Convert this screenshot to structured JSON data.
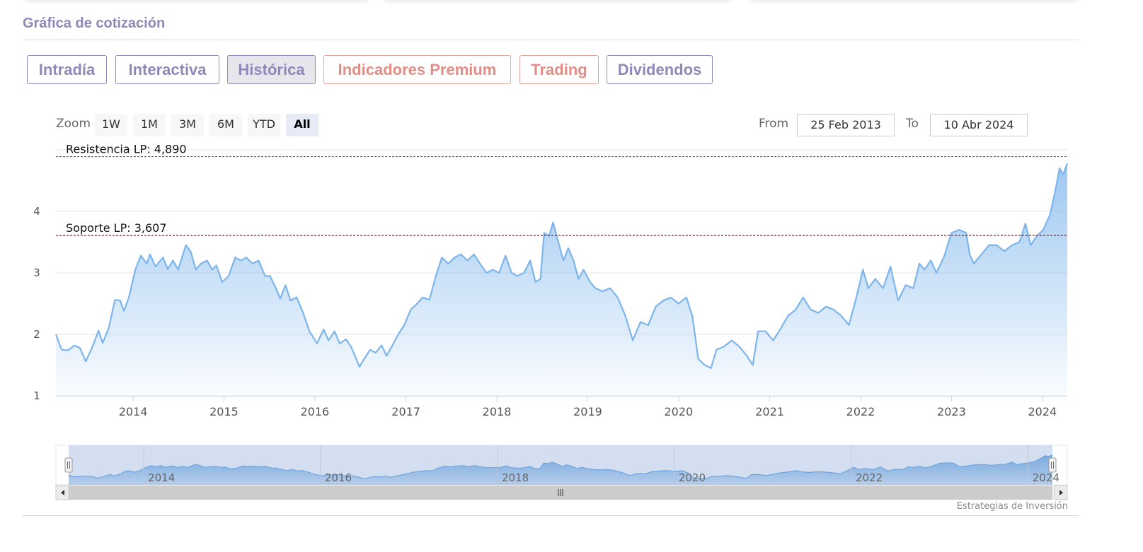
{
  "section": {
    "title": "Gráfica de cotización"
  },
  "tabs": [
    {
      "label": "Intradía",
      "style": "normal"
    },
    {
      "label": "Interactiva",
      "style": "normal"
    },
    {
      "label": "Histórica",
      "style": "active"
    },
    {
      "label": "Indicadores Premium",
      "style": "premium"
    },
    {
      "label": "Trading",
      "style": "premium"
    },
    {
      "label": "Dividendos",
      "style": "normal"
    }
  ],
  "range_selector": {
    "zoom_label": "Zoom",
    "buttons": [
      "1W",
      "1M",
      "3M",
      "6M",
      "YTD",
      "All"
    ],
    "selected": "All",
    "from_label": "From",
    "from_value": "25 Feb 2013",
    "to_label": "To",
    "to_value": "10 Abr 2024"
  },
  "credits": "Estrategias de Inversión",
  "colors": {
    "brand_purple": "#8e89b8",
    "premium_salmon": "#e08f87",
    "series_line": "#7cb5ec",
    "resistance_line": "#2e8b3a",
    "support_line": "#8b1a1a"
  },
  "chart_data": {
    "type": "area",
    "title": "",
    "xlabel": "",
    "ylabel": "",
    "x_axis_type": "date",
    "xlim": [
      "2013-02-25",
      "2024-04-10"
    ],
    "ylim": [
      1,
      5
    ],
    "y_ticks": [
      1,
      2,
      3,
      4
    ],
    "x_ticks": [
      "2014",
      "2015",
      "2016",
      "2017",
      "2018",
      "2019",
      "2020",
      "2021",
      "2022",
      "2023",
      "2024"
    ],
    "navigator_ticks": [
      "2014",
      "2016",
      "2018",
      "2020",
      "2022",
      "2024"
    ],
    "grid": true,
    "legend": "none",
    "plot_lines": [
      {
        "label": "Resistencia LP: 4,890",
        "value": 4.89,
        "style": "dashed",
        "color": "#2e8b3a"
      },
      {
        "label": "Soporte LP: 3,607",
        "value": 3.607,
        "style": "dashed",
        "color": "#8b1a1a"
      }
    ],
    "series": [
      {
        "points": [
          [
            "2013-02-25",
            2.0
          ],
          [
            "2013-03-20",
            1.75
          ],
          [
            "2013-04-15",
            1.74
          ],
          [
            "2013-05-10",
            1.82
          ],
          [
            "2013-06-01",
            1.78
          ],
          [
            "2013-06-25",
            1.56
          ],
          [
            "2013-07-20",
            1.78
          ],
          [
            "2013-08-15",
            2.06
          ],
          [
            "2013-09-01",
            1.86
          ],
          [
            "2013-09-25",
            2.1
          ],
          [
            "2013-10-20",
            2.56
          ],
          [
            "2013-11-10",
            2.55
          ],
          [
            "2013-11-25",
            2.38
          ],
          [
            "2013-12-15",
            2.6
          ],
          [
            "2014-01-10",
            3.05
          ],
          [
            "2014-02-01",
            3.28
          ],
          [
            "2014-02-25",
            3.15
          ],
          [
            "2014-03-10",
            3.3
          ],
          [
            "2014-04-01",
            3.1
          ],
          [
            "2014-05-01",
            3.25
          ],
          [
            "2014-05-20",
            3.06
          ],
          [
            "2014-06-10",
            3.2
          ],
          [
            "2014-07-01",
            3.05
          ],
          [
            "2014-08-01",
            3.45
          ],
          [
            "2014-08-20",
            3.35
          ],
          [
            "2014-09-10",
            3.05
          ],
          [
            "2014-10-01",
            3.15
          ],
          [
            "2014-10-25",
            3.2
          ],
          [
            "2014-11-15",
            3.05
          ],
          [
            "2014-12-01",
            3.12
          ],
          [
            "2014-12-25",
            2.85
          ],
          [
            "2015-01-20",
            2.95
          ],
          [
            "2015-02-15",
            3.25
          ],
          [
            "2015-03-10",
            3.2
          ],
          [
            "2015-04-01",
            3.25
          ],
          [
            "2015-04-25",
            3.15
          ],
          [
            "2015-05-20",
            3.2
          ],
          [
            "2015-06-15",
            2.95
          ],
          [
            "2015-07-05",
            2.95
          ],
          [
            "2015-07-25",
            2.78
          ],
          [
            "2015-08-15",
            2.58
          ],
          [
            "2015-09-05",
            2.8
          ],
          [
            "2015-09-25",
            2.55
          ],
          [
            "2015-10-20",
            2.6
          ],
          [
            "2015-11-15",
            2.35
          ],
          [
            "2015-12-10",
            2.05
          ],
          [
            "2016-01-10",
            1.85
          ],
          [
            "2016-02-05",
            2.08
          ],
          [
            "2016-02-25",
            1.9
          ],
          [
            "2016-03-20",
            2.05
          ],
          [
            "2016-04-10",
            1.85
          ],
          [
            "2016-05-05",
            1.92
          ],
          [
            "2016-05-25",
            1.8
          ],
          [
            "2016-06-15",
            1.6
          ],
          [
            "2016-06-28",
            1.47
          ],
          [
            "2016-07-20",
            1.62
          ],
          [
            "2016-08-10",
            1.75
          ],
          [
            "2016-09-01",
            1.7
          ],
          [
            "2016-09-25",
            1.82
          ],
          [
            "2016-10-15",
            1.65
          ],
          [
            "2016-11-05",
            1.8
          ],
          [
            "2016-12-01",
            2.0
          ],
          [
            "2016-12-25",
            2.15
          ],
          [
            "2017-01-20",
            2.4
          ],
          [
            "2017-02-15",
            2.5
          ],
          [
            "2017-03-10",
            2.6
          ],
          [
            "2017-04-05",
            2.56
          ],
          [
            "2017-05-01",
            2.95
          ],
          [
            "2017-05-25",
            3.25
          ],
          [
            "2017-06-20",
            3.15
          ],
          [
            "2017-07-15",
            3.25
          ],
          [
            "2017-08-10",
            3.3
          ],
          [
            "2017-09-05",
            3.2
          ],
          [
            "2017-10-01",
            3.3
          ],
          [
            "2017-10-25",
            3.15
          ],
          [
            "2017-11-20",
            3.0
          ],
          [
            "2017-12-15",
            3.05
          ],
          [
            "2018-01-10",
            3.0
          ],
          [
            "2018-02-05",
            3.28
          ],
          [
            "2018-03-01",
            3.0
          ],
          [
            "2018-03-25",
            2.95
          ],
          [
            "2018-04-20",
            3.0
          ],
          [
            "2018-05-15",
            3.2
          ],
          [
            "2018-06-05",
            2.85
          ],
          [
            "2018-06-25",
            2.9
          ],
          [
            "2018-07-10",
            3.65
          ],
          [
            "2018-07-30",
            3.6
          ],
          [
            "2018-08-15",
            3.82
          ],
          [
            "2018-09-05",
            3.5
          ],
          [
            "2018-09-25",
            3.2
          ],
          [
            "2018-10-15",
            3.4
          ],
          [
            "2018-11-05",
            3.2
          ],
          [
            "2018-11-25",
            2.9
          ],
          [
            "2018-12-15",
            3.05
          ],
          [
            "2019-01-10",
            2.85
          ],
          [
            "2019-02-01",
            2.75
          ],
          [
            "2019-03-01",
            2.7
          ],
          [
            "2019-04-01",
            2.75
          ],
          [
            "2019-05-01",
            2.6
          ],
          [
            "2019-06-01",
            2.3
          ],
          [
            "2019-07-01",
            1.9
          ],
          [
            "2019-08-01",
            2.2
          ],
          [
            "2019-09-01",
            2.15
          ],
          [
            "2019-10-01",
            2.45
          ],
          [
            "2019-11-01",
            2.55
          ],
          [
            "2019-12-01",
            2.6
          ],
          [
            "2020-01-01",
            2.5
          ],
          [
            "2020-02-01",
            2.6
          ],
          [
            "2020-02-25",
            2.3
          ],
          [
            "2020-03-20",
            1.6
          ],
          [
            "2020-04-15",
            1.5
          ],
          [
            "2020-05-10",
            1.45
          ],
          [
            "2020-06-01",
            1.75
          ],
          [
            "2020-07-01",
            1.8
          ],
          [
            "2020-08-01",
            1.9
          ],
          [
            "2020-09-01",
            1.8
          ],
          [
            "2020-10-01",
            1.65
          ],
          [
            "2020-10-25",
            1.5
          ],
          [
            "2020-11-15",
            2.05
          ],
          [
            "2020-12-15",
            2.05
          ],
          [
            "2021-01-15",
            1.9
          ],
          [
            "2021-02-15",
            2.1
          ],
          [
            "2021-03-15",
            2.3
          ],
          [
            "2021-04-15",
            2.4
          ],
          [
            "2021-05-15",
            2.6
          ],
          [
            "2021-06-15",
            2.4
          ],
          [
            "2021-07-15",
            2.35
          ],
          [
            "2021-08-15",
            2.45
          ],
          [
            "2021-09-15",
            2.4
          ],
          [
            "2021-10-15",
            2.3
          ],
          [
            "2021-11-15",
            2.15
          ],
          [
            "2021-12-15",
            2.6
          ],
          [
            "2022-01-10",
            3.05
          ],
          [
            "2022-02-01",
            2.75
          ],
          [
            "2022-03-01",
            2.9
          ],
          [
            "2022-04-01",
            2.75
          ],
          [
            "2022-05-01",
            3.1
          ],
          [
            "2022-06-01",
            2.55
          ],
          [
            "2022-07-01",
            2.8
          ],
          [
            "2022-08-01",
            2.75
          ],
          [
            "2022-08-25",
            3.15
          ],
          [
            "2022-09-15",
            3.05
          ],
          [
            "2022-10-10",
            3.2
          ],
          [
            "2022-11-01",
            3.0
          ],
          [
            "2022-12-01",
            3.25
          ],
          [
            "2023-01-01",
            3.65
          ],
          [
            "2023-02-01",
            3.7
          ],
          [
            "2023-03-01",
            3.65
          ],
          [
            "2023-03-15",
            3.3
          ],
          [
            "2023-04-01",
            3.15
          ],
          [
            "2023-05-01",
            3.3
          ],
          [
            "2023-06-01",
            3.45
          ],
          [
            "2023-07-01",
            3.45
          ],
          [
            "2023-08-01",
            3.35
          ],
          [
            "2023-09-01",
            3.45
          ],
          [
            "2023-10-01",
            3.5
          ],
          [
            "2023-10-25",
            3.8
          ],
          [
            "2023-11-15",
            3.45
          ],
          [
            "2023-12-10",
            3.6
          ],
          [
            "2024-01-05",
            3.7
          ],
          [
            "2024-02-01",
            3.95
          ],
          [
            "2024-02-25",
            4.4
          ],
          [
            "2024-03-10",
            4.7
          ],
          [
            "2024-03-25",
            4.6
          ],
          [
            "2024-04-10",
            4.78
          ]
        ]
      }
    ]
  }
}
